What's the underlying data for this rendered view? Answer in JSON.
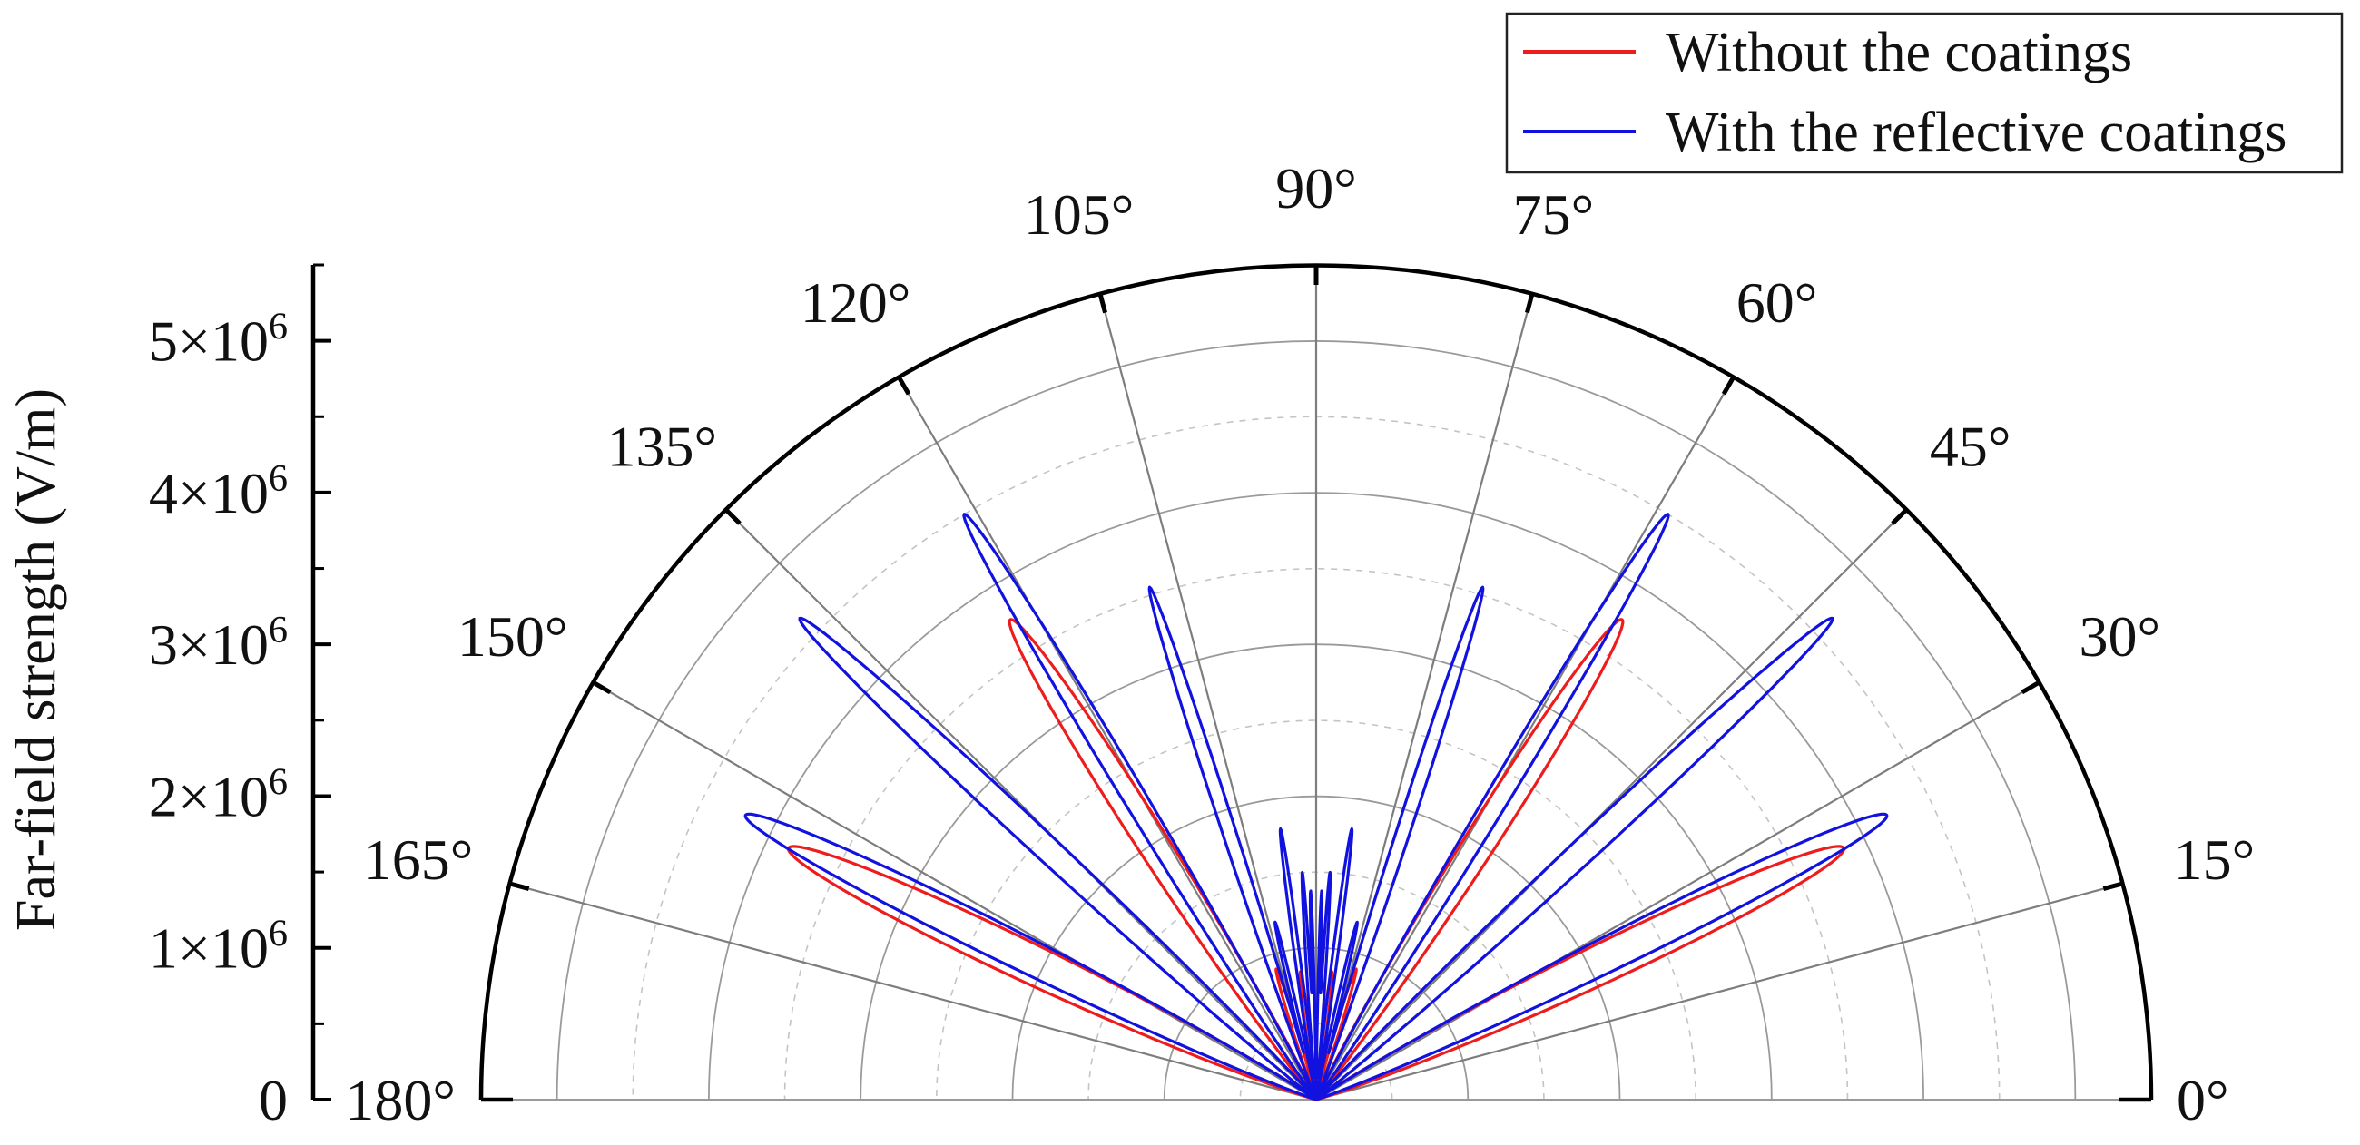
{
  "chart_data": {
    "type": "polar-line",
    "title": "",
    "ylabel": "Far-field strength (V/m)",
    "radial_range": [
      0,
      5500000
    ],
    "radial_ticks": [
      {
        "value": 0,
        "label": "0"
      },
      {
        "value": 1000000,
        "label": "1×10",
        "exp": "6"
      },
      {
        "value": 2000000,
        "label": "2×10",
        "exp": "6"
      },
      {
        "value": 3000000,
        "label": "3×10",
        "exp": "6"
      },
      {
        "value": 4000000,
        "label": "4×10",
        "exp": "6"
      },
      {
        "value": 5000000,
        "label": "5×10",
        "exp": "6"
      }
    ],
    "angle_range_deg": [
      0,
      180
    ],
    "angle_ticks": [
      {
        "value": 0,
        "label": "0°"
      },
      {
        "value": 15,
        "label": "15°"
      },
      {
        "value": 30,
        "label": "30°"
      },
      {
        "value": 45,
        "label": "45°"
      },
      {
        "value": 60,
        "label": "60°"
      },
      {
        "value": 75,
        "label": "75°"
      },
      {
        "value": 90,
        "label": "90°"
      },
      {
        "value": 105,
        "label": "105°"
      },
      {
        "value": 120,
        "label": "120°"
      },
      {
        "value": 135,
        "label": "135°"
      },
      {
        "value": 150,
        "label": "150°"
      },
      {
        "value": 165,
        "label": "165°"
      },
      {
        "value": 180,
        "label": "180°"
      }
    ],
    "grid": true,
    "legend_position": "top-right",
    "series": [
      {
        "name": "Without the coatings",
        "color": "#ee1c1c",
        "lobes": [
          {
            "center_deg": 25.5,
            "peak": 3850000,
            "width_deg": 3.2
          },
          {
            "center_deg": 57.5,
            "peak": 3750000,
            "width_deg": 2.6
          },
          {
            "center_deg": 73.0,
            "peak": 900000,
            "width_deg": 1.6
          },
          {
            "center_deg": 83.0,
            "peak": 850000,
            "width_deg": 1.4
          },
          {
            "center_deg": 97.0,
            "peak": 850000,
            "width_deg": 1.4
          },
          {
            "center_deg": 107.0,
            "peak": 900000,
            "width_deg": 1.6
          },
          {
            "center_deg": 122.5,
            "peak": 3750000,
            "width_deg": 2.6
          },
          {
            "center_deg": 154.5,
            "peak": 3850000,
            "width_deg": 3.2
          }
        ]
      },
      {
        "name": "With the reflective coatings",
        "color": "#1212e0",
        "lobes": [
          {
            "center_deg": 26.5,
            "peak": 4200000,
            "width_deg": 2.6
          },
          {
            "center_deg": 43.0,
            "peak": 4650000,
            "width_deg": 1.7
          },
          {
            "center_deg": 59.0,
            "peak": 4500000,
            "width_deg": 1.6
          },
          {
            "center_deg": 72.0,
            "peak": 3550000,
            "width_deg": 1.2
          },
          {
            "center_deg": 77.0,
            "peak": 1200000,
            "width_deg": 1.0
          },
          {
            "center_deg": 82.5,
            "peak": 1800000,
            "width_deg": 0.9
          },
          {
            "center_deg": 86.5,
            "peak": 1500000,
            "width_deg": 0.7
          },
          {
            "center_deg": 88.5,
            "peak": 1350000,
            "width_deg": 0.5
          },
          {
            "center_deg": 91.5,
            "peak": 1350000,
            "width_deg": 0.5
          },
          {
            "center_deg": 93.5,
            "peak": 1500000,
            "width_deg": 0.7
          },
          {
            "center_deg": 97.5,
            "peak": 1800000,
            "width_deg": 0.9
          },
          {
            "center_deg": 103.0,
            "peak": 1200000,
            "width_deg": 1.0
          },
          {
            "center_deg": 108.0,
            "peak": 3550000,
            "width_deg": 1.2
          },
          {
            "center_deg": 121.0,
            "peak": 4500000,
            "width_deg": 1.6
          },
          {
            "center_deg": 137.0,
            "peak": 4650000,
            "width_deg": 1.7
          },
          {
            "center_deg": 153.5,
            "peak": 4200000,
            "width_deg": 2.6
          }
        ]
      }
    ]
  }
}
